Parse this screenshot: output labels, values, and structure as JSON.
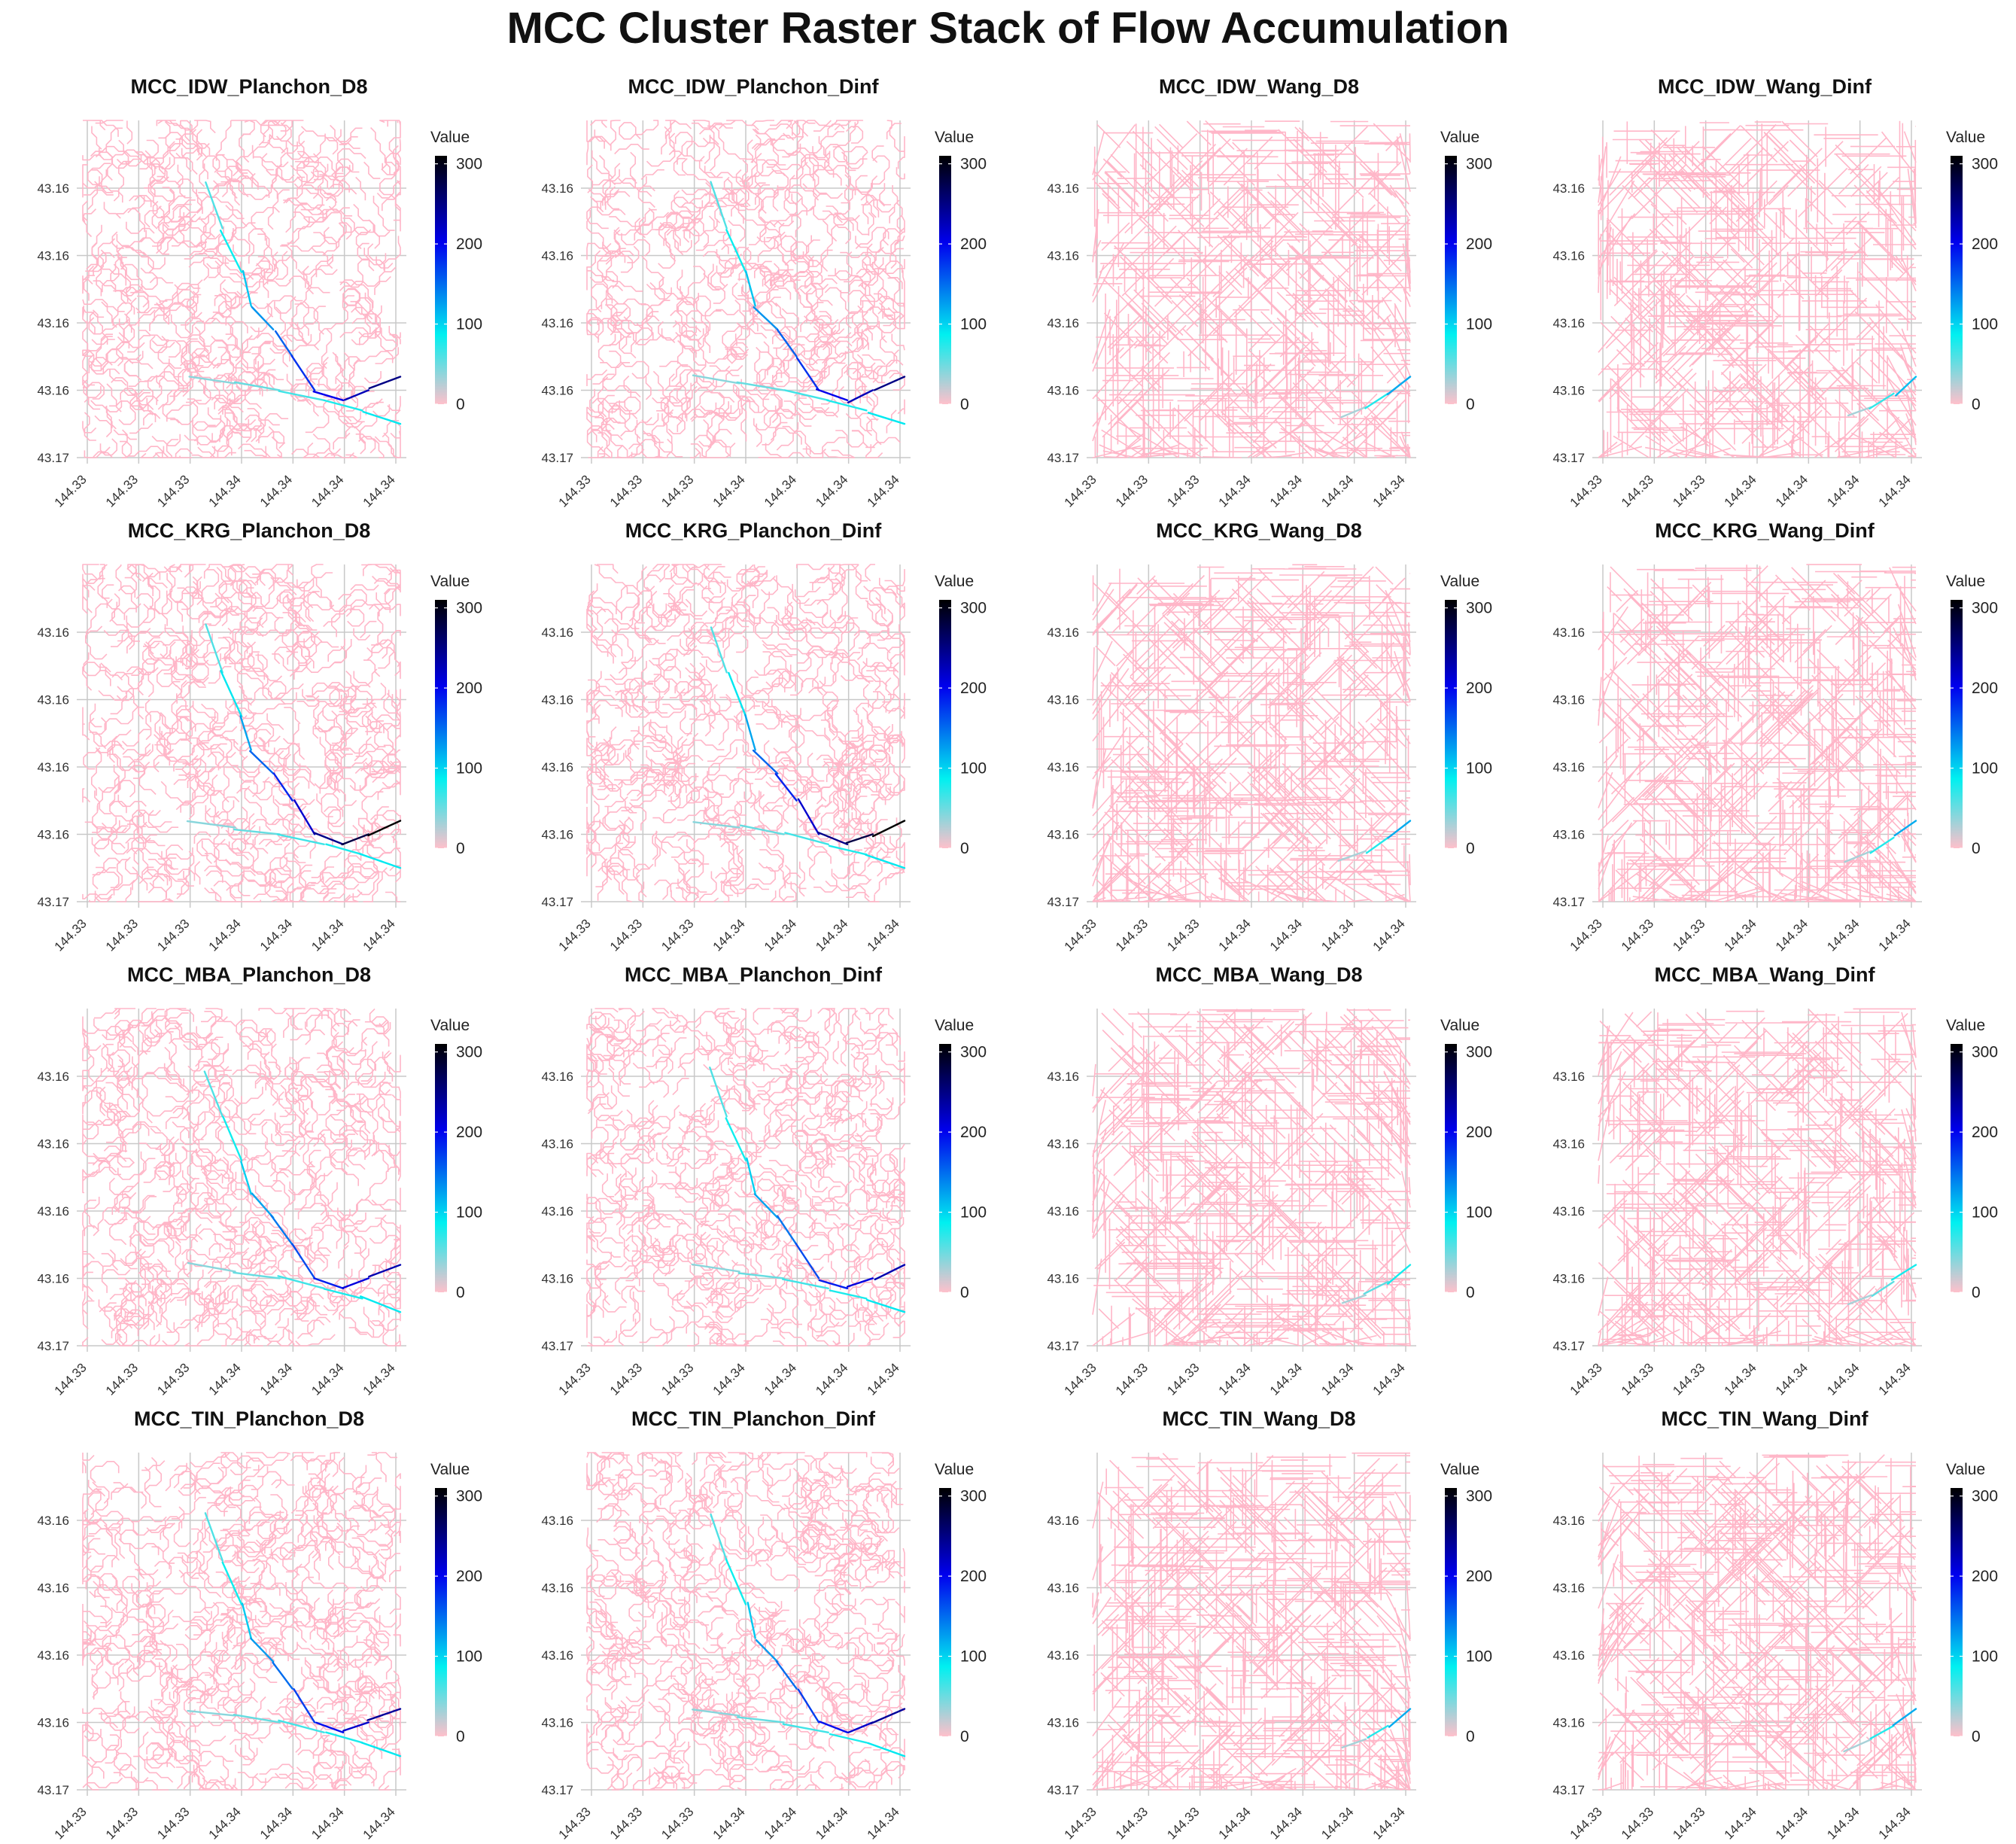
{
  "figure": {
    "title": "MCC Cluster Raster Stack of Flow Accumulation"
  },
  "chart_data": [
    {
      "type": "heatmap",
      "title": "MCC_IDW_Planchon_D8",
      "legend_title": "Value",
      "xlabel": "",
      "ylabel": "",
      "x_ticks": [
        "144.33",
        "144.33",
        "144.33",
        "144.34",
        "144.34",
        "144.34",
        "144.34"
      ],
      "y_ticks": [
        "43.17",
        "43.16",
        "43.16",
        "43.16",
        "43.16"
      ],
      "colorbar_ticks": [
        0,
        100,
        200,
        300
      ],
      "value_range": [
        0,
        310
      ],
      "stream_pattern": "planchon",
      "max_channel_value": 250
    },
    {
      "type": "heatmap",
      "title": "MCC_IDW_Planchon_Dinf",
      "legend_title": "Value",
      "xlabel": "",
      "ylabel": "",
      "x_ticks": [
        "144.33",
        "144.33",
        "144.33",
        "144.34",
        "144.34",
        "144.34",
        "144.34"
      ],
      "y_ticks": [
        "43.17",
        "43.16",
        "43.16",
        "43.16",
        "43.16"
      ],
      "colorbar_ticks": [
        0,
        100,
        200,
        300
      ],
      "value_range": [
        0,
        310
      ],
      "stream_pattern": "planchon",
      "max_channel_value": 250
    },
    {
      "type": "heatmap",
      "title": "MCC_IDW_Wang_D8",
      "legend_title": "Value",
      "xlabel": "",
      "ylabel": "",
      "x_ticks": [
        "144.33",
        "144.33",
        "144.33",
        "144.34",
        "144.34",
        "144.34",
        "144.34"
      ],
      "y_ticks": [
        "43.17",
        "43.16",
        "43.16",
        "43.16",
        "43.16"
      ],
      "colorbar_ticks": [
        0,
        100,
        200,
        300
      ],
      "value_range": [
        0,
        310
      ],
      "stream_pattern": "wang",
      "max_channel_value": 120
    },
    {
      "type": "heatmap",
      "title": "MCC_IDW_Wang_Dinf",
      "legend_title": "Value",
      "xlabel": "",
      "ylabel": "",
      "x_ticks": [
        "144.33",
        "144.33",
        "144.33",
        "144.34",
        "144.34",
        "144.34",
        "144.34"
      ],
      "y_ticks": [
        "43.17",
        "43.16",
        "43.16",
        "43.16",
        "43.16"
      ],
      "colorbar_ticks": [
        0,
        100,
        200,
        300
      ],
      "value_range": [
        0,
        310
      ],
      "stream_pattern": "wang",
      "max_channel_value": 110
    },
    {
      "type": "heatmap",
      "title": "MCC_KRG_Planchon_D8",
      "legend_title": "Value",
      "xlabel": "",
      "ylabel": "",
      "x_ticks": [
        "144.33",
        "144.33",
        "144.33",
        "144.34",
        "144.34",
        "144.34",
        "144.34"
      ],
      "y_ticks": [
        "43.17",
        "43.16",
        "43.16",
        "43.16",
        "43.16"
      ],
      "colorbar_ticks": [
        0,
        100,
        200,
        300
      ],
      "value_range": [
        0,
        310
      ],
      "stream_pattern": "planchon",
      "max_channel_value": 310
    },
    {
      "type": "heatmap",
      "title": "MCC_KRG_Planchon_Dinf",
      "legend_title": "Value",
      "xlabel": "",
      "ylabel": "",
      "x_ticks": [
        "144.33",
        "144.33",
        "144.33",
        "144.34",
        "144.34",
        "144.34",
        "144.34"
      ],
      "y_ticks": [
        "43.17",
        "43.16",
        "43.16",
        "43.16",
        "43.16"
      ],
      "colorbar_ticks": [
        0,
        100,
        200,
        300
      ],
      "value_range": [
        0,
        310
      ],
      "stream_pattern": "planchon",
      "max_channel_value": 310
    },
    {
      "type": "heatmap",
      "title": "MCC_KRG_Wang_D8",
      "legend_title": "Value",
      "xlabel": "",
      "ylabel": "",
      "x_ticks": [
        "144.33",
        "144.33",
        "144.33",
        "144.34",
        "144.34",
        "144.34",
        "144.34"
      ],
      "y_ticks": [
        "43.17",
        "43.16",
        "43.16",
        "43.16",
        "43.16"
      ],
      "colorbar_ticks": [
        0,
        100,
        200,
        300
      ],
      "value_range": [
        0,
        310
      ],
      "stream_pattern": "wang",
      "max_channel_value": 120
    },
    {
      "type": "heatmap",
      "title": "MCC_KRG_Wang_Dinf",
      "legend_title": "Value",
      "xlabel": "",
      "ylabel": "",
      "x_ticks": [
        "144.33",
        "144.33",
        "144.33",
        "144.34",
        "144.34",
        "144.34",
        "144.34"
      ],
      "y_ticks": [
        "43.17",
        "43.16",
        "43.16",
        "43.16",
        "43.16"
      ],
      "colorbar_ticks": [
        0,
        100,
        200,
        300
      ],
      "value_range": [
        0,
        310
      ],
      "stream_pattern": "wang",
      "max_channel_value": 120
    },
    {
      "type": "heatmap",
      "title": "MCC_MBA_Planchon_D8",
      "legend_title": "Value",
      "xlabel": "",
      "ylabel": "",
      "x_ticks": [
        "144.33",
        "144.33",
        "144.33",
        "144.34",
        "144.34",
        "144.34",
        "144.34"
      ],
      "y_ticks": [
        "43.17",
        "43.16",
        "43.16",
        "43.16",
        "43.16"
      ],
      "colorbar_ticks": [
        0,
        100,
        200,
        300
      ],
      "value_range": [
        0,
        310
      ],
      "stream_pattern": "planchon",
      "max_channel_value": 230
    },
    {
      "type": "heatmap",
      "title": "MCC_MBA_Planchon_Dinf",
      "legend_title": "Value",
      "xlabel": "",
      "ylabel": "",
      "x_ticks": [
        "144.33",
        "144.33",
        "144.33",
        "144.34",
        "144.34",
        "144.34",
        "144.34"
      ],
      "y_ticks": [
        "43.17",
        "43.16",
        "43.16",
        "43.16",
        "43.16"
      ],
      "colorbar_ticks": [
        0,
        100,
        200,
        300
      ],
      "value_range": [
        0,
        310
      ],
      "stream_pattern": "planchon",
      "max_channel_value": 230
    },
    {
      "type": "heatmap",
      "title": "MCC_MBA_Wang_D8",
      "legend_title": "Value",
      "xlabel": "",
      "ylabel": "",
      "x_ticks": [
        "144.33",
        "144.33",
        "144.33",
        "144.34",
        "144.34",
        "144.34",
        "144.34"
      ],
      "y_ticks": [
        "43.17",
        "43.16",
        "43.16",
        "43.16",
        "43.16"
      ],
      "colorbar_ticks": [
        0,
        100,
        200,
        300
      ],
      "value_range": [
        0,
        310
      ],
      "stream_pattern": "wang",
      "max_channel_value": 80
    },
    {
      "type": "heatmap",
      "title": "MCC_MBA_Wang_Dinf",
      "legend_title": "Value",
      "xlabel": "",
      "ylabel": "",
      "x_ticks": [
        "144.33",
        "144.33",
        "144.33",
        "144.34",
        "144.34",
        "144.34",
        "144.34"
      ],
      "y_ticks": [
        "43.17",
        "43.16",
        "43.16",
        "43.16",
        "43.16"
      ],
      "colorbar_ticks": [
        0,
        100,
        200,
        300
      ],
      "value_range": [
        0,
        310
      ],
      "stream_pattern": "wang",
      "max_channel_value": 80
    },
    {
      "type": "heatmap",
      "title": "MCC_TIN_Planchon_D8",
      "legend_title": "Value",
      "xlabel": "",
      "ylabel": "",
      "x_ticks": [
        "144.33",
        "144.33",
        "144.33",
        "144.34",
        "144.34",
        "144.34",
        "144.34"
      ],
      "y_ticks": [
        "43.17",
        "43.16",
        "43.16",
        "43.16",
        "43.16"
      ],
      "colorbar_ticks": [
        0,
        100,
        200,
        300
      ],
      "value_range": [
        0,
        310
      ],
      "stream_pattern": "planchon",
      "max_channel_value": 240
    },
    {
      "type": "heatmap",
      "title": "MCC_TIN_Planchon_Dinf",
      "legend_title": "Value",
      "xlabel": "",
      "ylabel": "",
      "x_ticks": [
        "144.33",
        "144.33",
        "144.33",
        "144.34",
        "144.34",
        "144.34",
        "144.34"
      ],
      "y_ticks": [
        "43.17",
        "43.16",
        "43.16",
        "43.16",
        "43.16"
      ],
      "colorbar_ticks": [
        0,
        100,
        200,
        300
      ],
      "value_range": [
        0,
        310
      ],
      "stream_pattern": "planchon",
      "max_channel_value": 240
    },
    {
      "type": "heatmap",
      "title": "MCC_TIN_Wang_D8",
      "legend_title": "Value",
      "xlabel": "",
      "ylabel": "",
      "x_ticks": [
        "144.33",
        "144.33",
        "144.33",
        "144.34",
        "144.34",
        "144.34",
        "144.34"
      ],
      "y_ticks": [
        "43.17",
        "43.16",
        "43.16",
        "43.16",
        "43.16"
      ],
      "colorbar_ticks": [
        0,
        100,
        200,
        300
      ],
      "value_range": [
        0,
        310
      ],
      "stream_pattern": "wang",
      "max_channel_value": 120
    },
    {
      "type": "heatmap",
      "title": "MCC_TIN_Wang_Dinf",
      "legend_title": "Value",
      "xlabel": "",
      "ylabel": "",
      "x_ticks": [
        "144.33",
        "144.33",
        "144.33",
        "144.34",
        "144.34",
        "144.34",
        "144.34"
      ],
      "y_ticks": [
        "43.17",
        "43.16",
        "43.16",
        "43.16",
        "43.16"
      ],
      "colorbar_ticks": [
        0,
        100,
        200,
        300
      ],
      "value_range": [
        0,
        310
      ],
      "stream_pattern": "wang",
      "max_channel_value": 120
    }
  ],
  "colors": {
    "background_cells": "#ffb6c8",
    "low": "#ffc0cb",
    "mid": "#00f0f0",
    "high": "#0000ee",
    "max": "#000000",
    "grid": "#c8c8c8"
  }
}
